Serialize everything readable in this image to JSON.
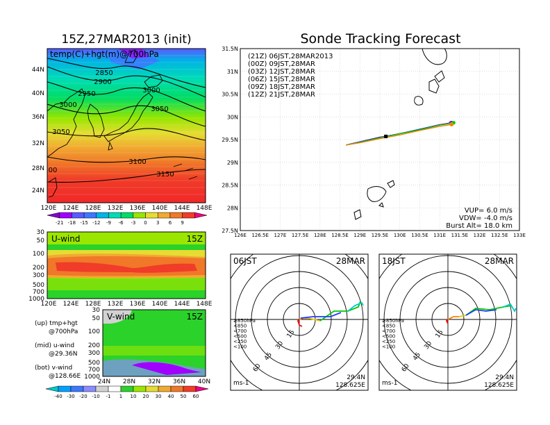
{
  "header": {
    "left_title": "15Z,27MAR2013 (init)",
    "right_title": "Sonde Tracking Forecast"
  },
  "map_panel": {
    "label": "temp(C)+hgt(m)@700hPa",
    "lat_labels": [
      "44N",
      "40N",
      "36N",
      "32N",
      "28N",
      "24N"
    ],
    "lon_labels": [
      "120E",
      "124E",
      "128E",
      "132E",
      "136E",
      "140E",
      "144E",
      "148E"
    ],
    "contour_labels": [
      "2850",
      "2900",
      "2950",
      "3000",
      "3000",
      "3050",
      "3050",
      "3100",
      "3150",
      "00"
    ],
    "colorbar_labels": [
      "-21",
      "-18",
      "-15",
      "-12",
      "-9",
      "-6",
      "-3",
      "0",
      "3",
      "6",
      "9"
    ],
    "colorbar_colors": [
      "#8a00c8",
      "#a000ff",
      "#5a5aff",
      "#3c78ff",
      "#00b4e6",
      "#00dcb4",
      "#00dc64",
      "#96e600",
      "#e6dc32",
      "#f0aa32",
      "#f07828",
      "#f03c28",
      "#f00082"
    ]
  },
  "uwind_panel": {
    "label": "U-wind",
    "time": "15Z",
    "y_labels": [
      "30",
      "50",
      "100",
      "200",
      "300",
      "500",
      "700",
      "1000"
    ],
    "x_labels": [
      "120E",
      "124E",
      "128E",
      "132E",
      "136E",
      "140E",
      "144E",
      "148E"
    ]
  },
  "vwind_panel": {
    "label": "V-wind",
    "time": "15Z",
    "y_labels": [
      "30",
      "50",
      "100",
      "200",
      "300",
      "500",
      "700",
      "1000"
    ],
    "x_labels": [
      "24N",
      "28N",
      "32N",
      "36N",
      "40N"
    ],
    "colorbar_labels": [
      "-40",
      "-30",
      "-20",
      "-10",
      "-1",
      "1",
      "10",
      "20",
      "30",
      "40",
      "50",
      "60"
    ],
    "colorbar_colors": [
      "#00c8c8",
      "#00a0ff",
      "#3c78ff",
      "#8c8cff",
      "#d2d2d2",
      "#ffffff",
      "#2ad22a",
      "#9be600",
      "#e6dc32",
      "#f0aa32",
      "#f07828",
      "#f03c28",
      "#f00082"
    ]
  },
  "legend_notes": [
    {
      "line1": "(up) tmp+hgt",
      "line2": "@700hPa"
    },
    {
      "line1": "(mid) u-wind",
      "line2": "@29.36N"
    },
    {
      "line1": "(bot) v-wind",
      "line2": "@128.66E"
    }
  ],
  "track_panel": {
    "lat_labels": [
      "31.5N",
      "31N",
      "30.5N",
      "30N",
      "29.5N",
      "29N",
      "28.5N",
      "28N",
      "27.5N"
    ],
    "lon_labels": [
      "126E",
      "126.5E",
      "127E",
      "127.5E",
      "128E",
      "128.5E",
      "129E",
      "129.5E",
      "130E",
      "130.5E",
      "131E",
      "131.5E",
      "132E",
      "132.5E",
      "133E"
    ],
    "legend": [
      {
        "text": "(21Z) 06JST,28MAR2013",
        "color": "#000000"
      },
      {
        "text": "(00Z) 09JST,28MAR",
        "color": "#a000c8"
      },
      {
        "text": "(03Z) 12JST,28MAR",
        "color": "#1e3cff"
      },
      {
        "text": "(06Z) 15JST,28MAR",
        "color": "#00c800"
      },
      {
        "text": "(09Z) 18JST,28MAR",
        "color": "#e6c800"
      },
      {
        "text": "(12Z) 21JST,28MAR",
        "color": "#f08200"
      }
    ],
    "params": [
      "VUP= 6.0 m/s",
      "VDW= -4.0 m/s",
      "Burst Alt= 18.0 km"
    ]
  },
  "hodograph_left": {
    "time": "06JST",
    "date": "28MAR",
    "ring_labels": [
      "15",
      "30",
      "45",
      "60"
    ],
    "units": "ms-1",
    "lat": "29.4N",
    "lon": "128.625E",
    "levels": [
      {
        "text": "≥850hPa",
        "color": "#ff0000"
      },
      {
        "text": "<850",
        "color": "#f08200"
      },
      {
        "text": "<700",
        "color": "#e6c800"
      },
      {
        "text": "<500",
        "color": "#00c800"
      },
      {
        "text": "<250",
        "color": "#00c8c8"
      },
      {
        "text": "<100",
        "color": "#1e3cff"
      }
    ]
  },
  "hodograph_right": {
    "time": "18JST",
    "date": "28MAR",
    "ring_labels": [
      "15",
      "30",
      "45",
      "60"
    ],
    "units": "ms-1",
    "lat": "29.4N",
    "lon": "128.625E",
    "levels": [
      {
        "text": "≥850hPa",
        "color": "#ff0000"
      },
      {
        "text": "<850",
        "color": "#f08200"
      },
      {
        "text": "<700",
        "color": "#e6c800"
      },
      {
        "text": "<500",
        "color": "#00c800"
      },
      {
        "text": "<250",
        "color": "#00c8c8"
      },
      {
        "text": "<100",
        "color": "#1e3cff"
      }
    ]
  },
  "chart_data": {
    "type": "line",
    "title": "Sonde Tracking Forecast",
    "xlim": [
      126,
      133
    ],
    "ylim": [
      27.5,
      31.5
    ],
    "series": [
      {
        "name": "(21Z) 06JST,28MAR2013",
        "color": "#000000",
        "points": [
          [
            128.65,
            29.38
          ],
          [
            129.0,
            29.45
          ],
          [
            129.5,
            29.55
          ],
          [
            129.65,
            29.57
          ],
          [
            130.0,
            29.63
          ],
          [
            130.5,
            29.72
          ],
          [
            131.0,
            29.82
          ],
          [
            131.3,
            29.87
          ]
        ]
      },
      {
        "name": "(00Z) 09JST,28MAR",
        "color": "#a000c8",
        "points": [
          [
            128.65,
            29.38
          ],
          [
            129.0,
            29.45
          ],
          [
            129.5,
            29.55
          ],
          [
            130.0,
            29.63
          ],
          [
            130.5,
            29.73
          ],
          [
            131.0,
            29.83
          ],
          [
            131.28,
            29.87
          ]
        ]
      },
      {
        "name": "(03Z) 12JST,28MAR",
        "color": "#1e3cff",
        "points": [
          [
            128.65,
            29.38
          ],
          [
            129.0,
            29.45
          ],
          [
            129.5,
            29.54
          ],
          [
            130.0,
            29.63
          ],
          [
            130.5,
            29.73
          ],
          [
            131.0,
            29.82
          ],
          [
            131.3,
            29.86
          ]
        ]
      },
      {
        "name": "(06Z) 15JST,28MAR",
        "color": "#00c800",
        "points": [
          [
            128.65,
            29.38
          ],
          [
            129.0,
            29.44
          ],
          [
            129.5,
            29.54
          ],
          [
            130.0,
            29.63
          ],
          [
            130.5,
            29.72
          ],
          [
            131.0,
            29.82
          ],
          [
            131.35,
            29.87
          ]
        ]
      },
      {
        "name": "(09Z) 18JST,28MAR",
        "color": "#e6c800",
        "points": [
          [
            128.65,
            29.38
          ],
          [
            129.0,
            29.43
          ],
          [
            129.5,
            29.52
          ],
          [
            130.0,
            29.6
          ],
          [
            130.5,
            29.7
          ],
          [
            131.0,
            29.79
          ],
          [
            131.3,
            29.84
          ]
        ]
      },
      {
        "name": "(12Z) 21JST,28MAR",
        "color": "#f08200",
        "points": [
          [
            128.65,
            29.38
          ],
          [
            129.0,
            29.43
          ],
          [
            129.5,
            29.52
          ],
          [
            130.0,
            29.6
          ],
          [
            130.5,
            29.7
          ],
          [
            131.0,
            29.79
          ],
          [
            131.3,
            29.83
          ]
        ]
      }
    ]
  }
}
